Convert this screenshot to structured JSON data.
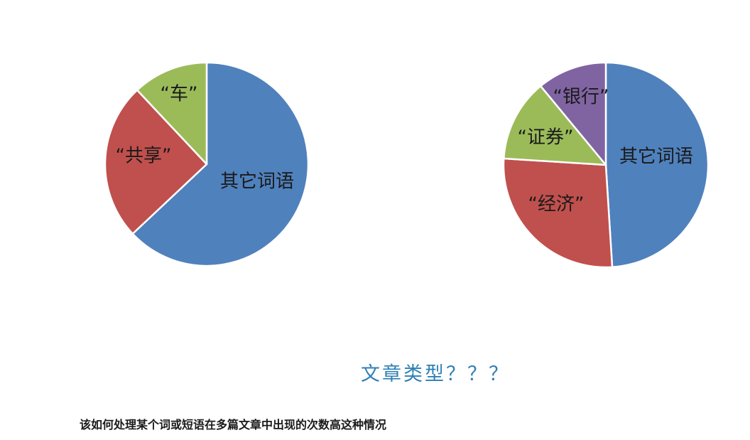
{
  "chart_data": [
    {
      "type": "pie",
      "categories": [
        "其它词语",
        "“共享”",
        "“车”"
      ],
      "values": [
        63,
        25,
        12
      ],
      "colors": [
        "#4f81bd",
        "#c0504d",
        "#9bbb59"
      ],
      "start_angle_deg": 0,
      "direction": "clockwise-from-top",
      "title": ""
    },
    {
      "type": "pie",
      "categories": [
        "其它词语",
        "“经济”",
        "“证券”",
        "“银行”"
      ],
      "values": [
        49,
        27,
        13,
        11
      ],
      "colors": [
        "#4f81bd",
        "#c0504d",
        "#9bbb59",
        "#8064a2"
      ],
      "start_angle_deg": 0,
      "direction": "clockwise-from-top",
      "title": ""
    }
  ],
  "annotation": {
    "question": "文章类型？？？"
  },
  "caption": {
    "text": "该如何处理某个词或短语在多篇文章中出现的次数高这种情况"
  }
}
